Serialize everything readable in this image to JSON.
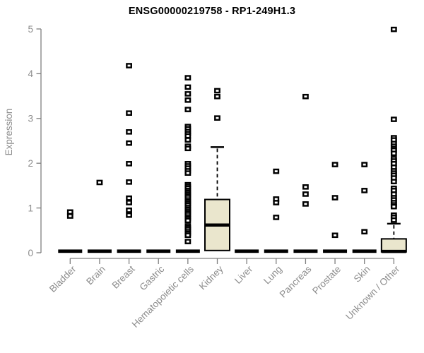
{
  "chart_data": {
    "type": "boxplot",
    "title": "ENSG00000219758 - RP1-249H1.3",
    "ylabel": "Expression",
    "xlabel": "",
    "ylim": [
      0,
      5
    ],
    "yticks": [
      0,
      1,
      2,
      3,
      4,
      5
    ],
    "grid": false,
    "legend": "none",
    "categories": [
      "Bladder",
      "Brain",
      "Breast",
      "Gastric",
      "Hematopoietic cells",
      "Kidney",
      "Liver",
      "Lung",
      "Pancreas",
      "Prostate",
      "Skin",
      "Unknown / Other"
    ],
    "boxes": [
      {
        "category": "Bladder",
        "q1": 0,
        "median": 0,
        "q3": 0,
        "whisker_low": 0,
        "whisker_high": 0,
        "outliers": [
          0.91,
          0.82
        ]
      },
      {
        "category": "Brain",
        "q1": 0,
        "median": 0,
        "q3": 0,
        "whisker_low": 0,
        "whisker_high": 0,
        "outliers": [
          1.57
        ]
      },
      {
        "category": "Breast",
        "q1": 0,
        "median": 0,
        "q3": 0,
        "whisker_low": 0,
        "whisker_high": 0,
        "outliers": [
          4.18,
          3.12,
          2.7,
          2.45,
          1.99,
          1.58,
          1.22,
          1.12,
          0.95,
          0.84
        ]
      },
      {
        "category": "Gastric",
        "q1": 0,
        "median": 0,
        "q3": 0,
        "whisker_low": 0,
        "whisker_high": 0,
        "outliers": []
      },
      {
        "category": "Hematopoietic cells",
        "q1": 0,
        "median": 0,
        "q3": 0,
        "whisker_low": 0,
        "whisker_high": 0,
        "outliers": [
          3.91,
          3.7,
          3.55,
          3.41,
          3.2,
          2.82,
          2.77,
          2.71,
          2.66,
          2.61,
          2.52,
          2.38,
          2.33,
          1.99,
          1.94,
          1.89,
          1.83,
          1.78,
          1.52,
          1.48,
          1.44,
          1.39,
          1.35,
          1.31,
          1.27,
          1.23,
          1.18,
          1.14,
          1.1,
          1.06,
          1.01,
          0.97,
          0.93,
          0.89,
          0.85,
          0.8,
          0.76,
          0.72,
          0.6,
          0.56,
          0.52,
          0.47,
          0.43,
          0.39,
          0.25
        ]
      },
      {
        "category": "Kidney",
        "q1": 0.05,
        "median": 0.62,
        "q3": 1.19,
        "whisker_low": 0.05,
        "whisker_high": 2.36,
        "outliers": [
          3.62,
          3.49,
          3.01
        ]
      },
      {
        "category": "Liver",
        "q1": 0,
        "median": 0,
        "q3": 0,
        "whisker_low": 0,
        "whisker_high": 0,
        "outliers": []
      },
      {
        "category": "Lung",
        "q1": 0,
        "median": 0,
        "q3": 0,
        "whisker_low": 0,
        "whisker_high": 0,
        "outliers": [
          1.82,
          1.2,
          1.12,
          0.79
        ]
      },
      {
        "category": "Pancreas",
        "q1": 0,
        "median": 0,
        "q3": 0,
        "whisker_low": 0,
        "whisker_high": 0,
        "outliers": [
          3.49,
          1.47,
          1.31,
          1.09
        ]
      },
      {
        "category": "Prostate",
        "q1": 0,
        "median": 0,
        "q3": 0,
        "whisker_low": 0,
        "whisker_high": 0,
        "outliers": [
          1.97,
          1.23,
          0.39
        ]
      },
      {
        "category": "Skin",
        "q1": 0,
        "median": 0,
        "q3": 0,
        "whisker_low": 0,
        "whisker_high": 0,
        "outliers": [
          1.97,
          1.39,
          0.47
        ]
      },
      {
        "category": "Unknown / Other",
        "q1": 0.02,
        "median": 0.03,
        "q3": 0.31,
        "whisker_low": 0.02,
        "whisker_high": 0.65,
        "outliers": [
          4.99,
          2.98,
          2.57,
          2.52,
          2.44,
          2.38,
          2.33,
          2.29,
          2.22,
          2.1,
          2.05,
          1.99,
          1.91,
          1.83,
          1.78,
          1.73,
          1.67,
          1.59,
          1.44,
          1.39,
          1.31,
          1.23,
          1.18,
          1.12,
          1.07,
          1.03,
          0.84,
          0.79,
          0.73
        ]
      }
    ],
    "colors": {
      "box_fill": "#EAE6CD",
      "box_stroke": "#000000",
      "median": "#000000",
      "point": "#000000",
      "axis": "#7F7F7F",
      "tick_label": "#8C8C8C",
      "title": "#000000",
      "background": "#FFFFFF"
    }
  }
}
